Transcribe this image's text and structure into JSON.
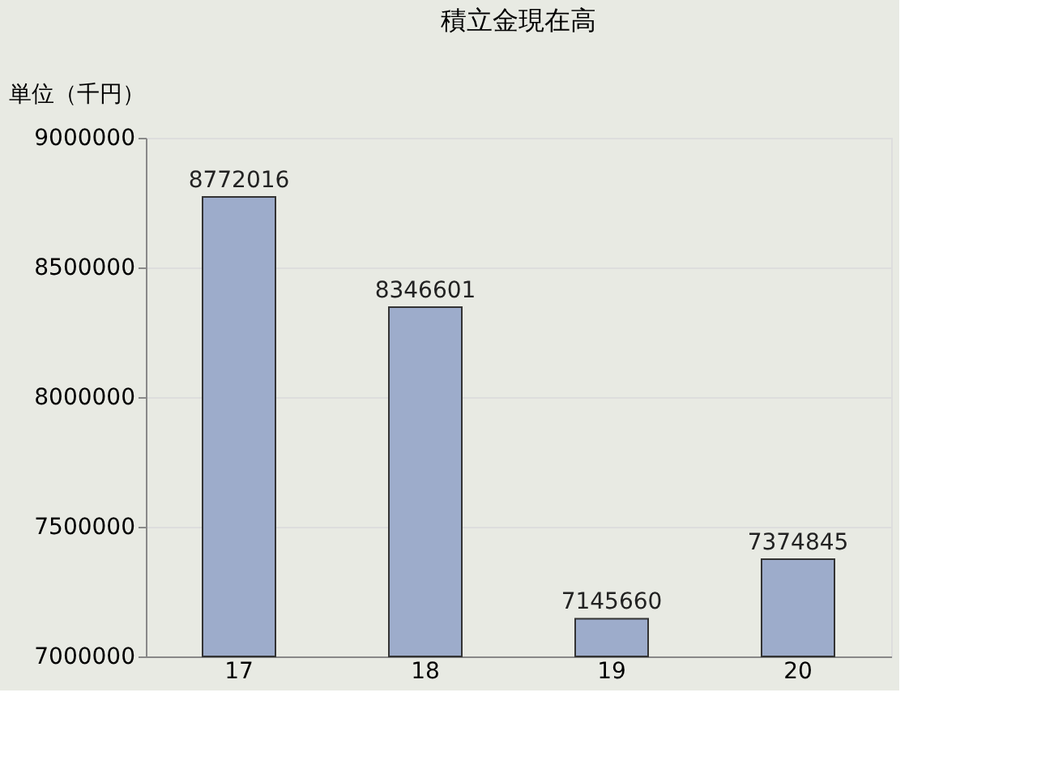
{
  "chart_data": {
    "type": "bar",
    "title": "積立金現在高",
    "ylabel": "単位（千円）",
    "categories": [
      "17",
      "18",
      "19",
      "20"
    ],
    "values": [
      8772016,
      8346601,
      7145660,
      7374845
    ],
    "color": "#9daccb",
    "ylim": [
      7000000,
      9000000
    ],
    "yticks": [
      7000000,
      7500000,
      8000000,
      8500000,
      9000000
    ],
    "grid": "y",
    "data_labels": true
  }
}
